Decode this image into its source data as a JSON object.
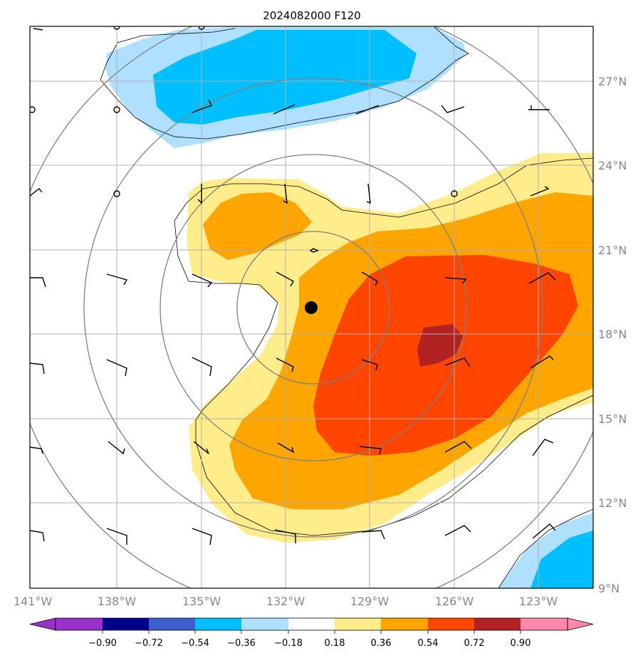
{
  "title": "2024082000 F120",
  "lon_labels": [
    "141°W",
    "138°W",
    "135°W",
    "132°W",
    "129°W",
    "126°W",
    "123°W"
  ],
  "lat_labels": [
    "27°N",
    "24°N",
    "21°N",
    "18°N",
    "15°N",
    "12°N",
    "9°N"
  ],
  "colorbar": {
    "ticks": [
      "−0.90",
      "−0.72",
      "−0.54",
      "−0.36",
      "−0.18",
      "0.18",
      "0.36",
      "0.54",
      "0.72",
      "0.90"
    ],
    "colors": [
      "#9932cc",
      "#00008b",
      "#3b5fcf",
      "#00bfff",
      "#b0e0ff",
      "#ffffff",
      "#ffec8b",
      "#ffa500",
      "#ff4500",
      "#b22222",
      "#ff88aa"
    ]
  },
  "center_marker": {
    "lon": -131.1,
    "lat": 18.9
  },
  "colors": {
    "light_blue": "#b0e0ff",
    "blue": "#00bfff",
    "light_yellow": "#ffec8b",
    "orange": "#ffa500",
    "red_orange": "#ff4500",
    "dark_red": "#b22222",
    "grid": "#b0b0b0",
    "range_ring": "#808080"
  }
}
